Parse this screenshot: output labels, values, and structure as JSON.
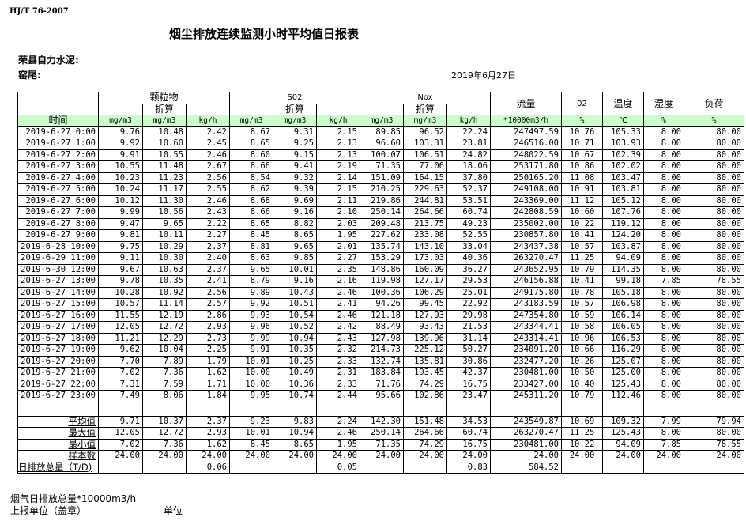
{
  "header": {
    "standard": "HJ/T  76-2007",
    "title": "烟尘排放连续监测小时平均值日报表",
    "company": "荣县自力水泥:",
    "kiln": "窑尾:",
    "date": "2019年6月27日"
  },
  "table": {
    "groups": {
      "particulate": "颗粒物",
      "so2": "S02",
      "nox": "Nox",
      "flow": "流量",
      "o2": "02",
      "temp": "温度",
      "humidity": "湿度",
      "load": "负荷"
    },
    "converted_label": "折算",
    "time_label": "时间",
    "units": [
      "mg/m3",
      "mg/m3",
      "kg/h",
      "mg/m3",
      "mg/m3",
      "kg/h",
      "mg/m3",
      "mg/m3",
      "kg/h",
      "*10000m3/h",
      "%",
      "℃",
      "%",
      "%"
    ],
    "header_color": "#ccffcc",
    "rows": [
      [
        "2019-6-27 0:00",
        "9.76",
        "10.48",
        "2.42",
        "8.67",
        "9.31",
        "2.15",
        "89.85",
        "96.52",
        "22.24",
        "247497.59",
        "10.76",
        "105.33",
        "8.00",
        "80.00"
      ],
      [
        "2019-6-27 1:00",
        "9.92",
        "10.60",
        "2.45",
        "8.65",
        "9.25",
        "2.13",
        "96.60",
        "103.31",
        "23.81",
        "246516.00",
        "10.71",
        "103.93",
        "8.00",
        "80.00"
      ],
      [
        "2019-6-27 2:00",
        "9.91",
        "10.55",
        "2.46",
        "8.60",
        "9.15",
        "2.13",
        "100.07",
        "106.51",
        "24.82",
        "248022.59",
        "10.67",
        "102.39",
        "8.00",
        "80.00"
      ],
      [
        "2019-6-27 3:00",
        "10.55",
        "11.48",
        "2.67",
        "8.66",
        "9.41",
        "2.19",
        "71.35",
        "77.06",
        "18.06",
        "253171.80",
        "10.86",
        "102.02",
        "8.00",
        "80.00"
      ],
      [
        "2019-6-27 4:00",
        "10.23",
        "11.23",
        "2.56",
        "8.54",
        "9.32",
        "2.14",
        "151.09",
        "164.15",
        "37.80",
        "250165.20",
        "11.08",
        "103.47",
        "8.00",
        "80.00"
      ],
      [
        "2019-6-27 5:00",
        "10.24",
        "11.17",
        "2.55",
        "8.62",
        "9.39",
        "2.15",
        "210.25",
        "229.63",
        "52.37",
        "249108.00",
        "10.91",
        "103.81",
        "8.00",
        "80.00"
      ],
      [
        "2019-6-27 6:00",
        "10.12",
        "11.30",
        "2.46",
        "8.68",
        "9.69",
        "2.11",
        "219.86",
        "244.81",
        "53.51",
        "243369.00",
        "11.12",
        "105.12",
        "8.00",
        "80.00"
      ],
      [
        "2019-6-27 7:00",
        "9.99",
        "10.56",
        "2.43",
        "8.66",
        "9.16",
        "2.10",
        "250.14",
        "264.66",
        "60.74",
        "242808.59",
        "10.60",
        "107.76",
        "8.00",
        "80.00"
      ],
      [
        "2019-6-27 8:00",
        "9.47",
        "9.65",
        "2.22",
        "8.65",
        "8.82",
        "2.03",
        "209.48",
        "213.75",
        "49.23",
        "235002.00",
        "10.22",
        "119.12",
        "8.00",
        "80.00"
      ],
      [
        "2019-6-27 9:00",
        "9.81",
        "10.11",
        "2.27",
        "8.45",
        "8.65",
        "1.95",
        "227.62",
        "233.08",
        "52.55",
        "230857.80",
        "10.41",
        "124.20",
        "8.00",
        "80.00"
      ],
      [
        "2019-6-28 10:00",
        "9.75",
        "10.29",
        "2.37",
        "8.81",
        "9.65",
        "2.01",
        "135.74",
        "143.10",
        "33.04",
        "243437.38",
        "10.57",
        "103.87",
        "8.00",
        "80.00"
      ],
      [
        "2019-6-29 11:00",
        "9.11",
        "10.30",
        "2.40",
        "8.63",
        "9.85",
        "2.27",
        "153.29",
        "173.03",
        "40.36",
        "263270.47",
        "11.25",
        "94.09",
        "8.00",
        "80.00"
      ],
      [
        "2019-6-30 12:00",
        "9.67",
        "10.63",
        "2.37",
        "9.65",
        "10.01",
        "2.35",
        "148.86",
        "160.09",
        "36.27",
        "243652.95",
        "10.79",
        "114.35",
        "8.00",
        "80.00"
      ],
      [
        "2019-6-27 13:00",
        "9.78",
        "10.35",
        "2.41",
        "8.79",
        "9.16",
        "2.16",
        "119.98",
        "127.17",
        "29.53",
        "246156.88",
        "10.41",
        "99.18",
        "7.85",
        "78.55"
      ],
      [
        "2019-6-27 14:00",
        "10.28",
        "10.92",
        "2.56",
        "9.89",
        "10.43",
        "2.46",
        "100.36",
        "106.29",
        "25.01",
        "249175.80",
        "10.78",
        "105.18",
        "8.00",
        "80.00"
      ],
      [
        "2019-6-27 15:00",
        "10.57",
        "11.14",
        "2.57",
        "9.92",
        "10.51",
        "2.41",
        "94.26",
        "99.45",
        "22.92",
        "243183.59",
        "10.57",
        "106.98",
        "8.00",
        "80.00"
      ],
      [
        "2019-6-27 16:00",
        "11.55",
        "12.19",
        "2.86",
        "9.93",
        "10.54",
        "2.46",
        "121.18",
        "127.93",
        "29.98",
        "247354.80",
        "10.59",
        "106.14",
        "8.00",
        "80.00"
      ],
      [
        "2019-6-27 17:00",
        "12.05",
        "12.72",
        "2.93",
        "9.96",
        "10.52",
        "2.42",
        "88.49",
        "93.43",
        "21.53",
        "243344.41",
        "10.58",
        "106.05",
        "8.00",
        "80.00"
      ],
      [
        "2019-6-27 18:00",
        "11.21",
        "12.29",
        "2.73",
        "9.99",
        "10.94",
        "2.43",
        "127.98",
        "139.96",
        "31.14",
        "243314.41",
        "10.96",
        "106.53",
        "8.00",
        "80.00"
      ],
      [
        "2019-6-27 19:00",
        "9.62",
        "10.04",
        "2.25",
        "9.91",
        "10.35",
        "2.32",
        "214.73",
        "225.12",
        "50.27",
        "234091.20",
        "10.66",
        "116.29",
        "8.00",
        "80.00"
      ],
      [
        "2019-6-27 20:00",
        "7.70",
        "7.89",
        "1.79",
        "10.01",
        "10.25",
        "2.33",
        "132.74",
        "135.81",
        "30.86",
        "232477.20",
        "10.26",
        "125.07",
        "8.00",
        "80.00"
      ],
      [
        "2019-6-27 21:00",
        "7.02",
        "7.36",
        "1.62",
        "10.00",
        "10.49",
        "2.31",
        "183.84",
        "193.45",
        "42.37",
        "230481.00",
        "10.50",
        "125.00",
        "8.00",
        "80.00"
      ],
      [
        "2019-6-27 22:00",
        "7.31",
        "7.59",
        "1.71",
        "10.00",
        "10.36",
        "2.33",
        "71.76",
        "74.29",
        "16.75",
        "233427.00",
        "10.40",
        "125.43",
        "8.00",
        "80.00"
      ],
      [
        "2019-6-27 23:00",
        "7.49",
        "8.06",
        "1.84",
        "9.95",
        "10.74",
        "2.44",
        "95.66",
        "102.86",
        "23.47",
        "245311.20",
        "10.79",
        "112.46",
        "8.00",
        "80.00"
      ]
    ],
    "stats": [
      [
        "平均值",
        "9.71",
        "10.37",
        "2.37",
        "9.23",
        "9.83",
        "2.24",
        "142.30",
        "151.48",
        "34.53",
        "243549.87",
        "10.69",
        "109.32",
        "7.99",
        "79.94"
      ],
      [
        "最大值",
        "12.05",
        "12.72",
        "2.93",
        "10.01",
        "10.94",
        "2.46",
        "250.14",
        "264.66",
        "60.74",
        "263270.47",
        "11.25",
        "125.43",
        "8.00",
        "80.00"
      ],
      [
        "最小值",
        "7.02",
        "7.36",
        "1.62",
        "8.45",
        "8.65",
        "1.95",
        "71.35",
        "74.29",
        "16.75",
        "230481.00",
        "10.22",
        "94.09",
        "7.85",
        "78.55"
      ],
      [
        "样本数",
        "24.00",
        "24.00",
        "24.00",
        "24.00",
        "24.00",
        "24.00",
        "24.00",
        "24.00",
        "24.00",
        "24.00",
        "24.00",
        "24.00",
        "24.00",
        "24.00"
      ],
      [
        "日排放总量（T/D)",
        "",
        "",
        "0.06",
        "",
        "",
        "0.05",
        "",
        "",
        "0.83",
        "584.52",
        "",
        "",
        "",
        ""
      ]
    ]
  },
  "footer": {
    "flue_gas_total": "烟气日排放总量*10000m3/h",
    "reporting_unit": "上报单位（盖章）",
    "unit": "单位"
  }
}
